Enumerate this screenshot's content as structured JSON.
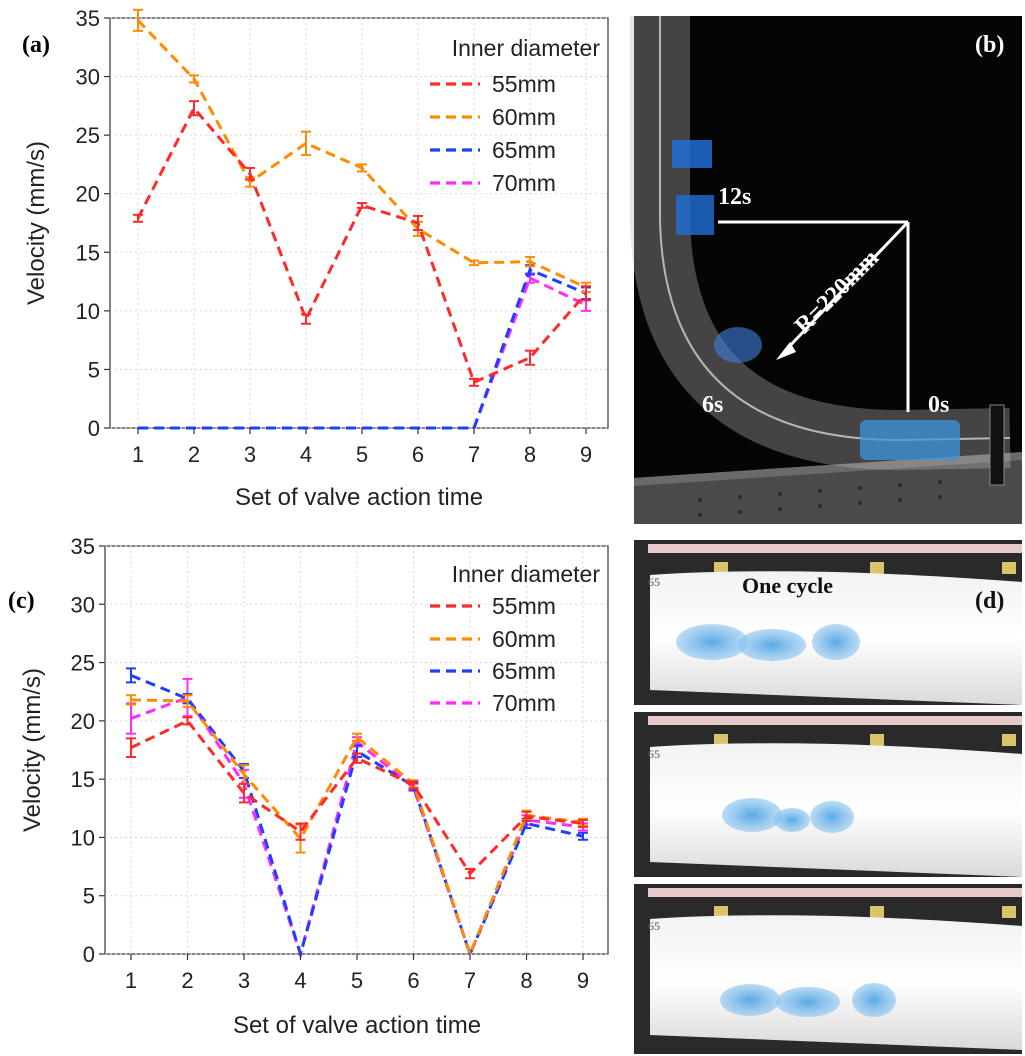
{
  "panels": {
    "a": "(a)",
    "b": "(b)",
    "c": "(c)",
    "d": "(d)"
  },
  "photo_b": {
    "labels": [
      "12s",
      "6s",
      "0s"
    ],
    "radius_label": "R=220mm"
  },
  "photo_d": {
    "caption": "One cycle",
    "strip_mark": "65"
  },
  "chart_data": [
    {
      "id": "a",
      "type": "line",
      "xlabel": "Set of valve action time",
      "ylabel": "Velocity (mm/s)",
      "x": [
        1,
        2,
        3,
        4,
        5,
        6,
        7,
        8,
        9
      ],
      "ylim": [
        0,
        35
      ],
      "yticks": [
        0,
        5,
        10,
        15,
        20,
        25,
        30,
        35
      ],
      "grid": true,
      "legend_title": "Inner diameter",
      "legend_position": "top-right",
      "series": [
        {
          "name": "55mm",
          "color": "#ff2a2a",
          "values": [
            17.9,
            27.3,
            21.7,
            9.3,
            19.0,
            17.5,
            3.9,
            6.0,
            11.5
          ],
          "errors": [
            0.3,
            0.6,
            0.5,
            0.4,
            0.2,
            0.6,
            0.3,
            0.6,
            0.6
          ]
        },
        {
          "name": "60mm",
          "color": "#ff8c00",
          "values": [
            34.8,
            29.8,
            21.0,
            24.3,
            22.2,
            17.0,
            14.1,
            14.2,
            12.0
          ],
          "errors": [
            0.9,
            0.3,
            0.4,
            1.0,
            0.3,
            0.6,
            0.2,
            0.4,
            0.4
          ]
        },
        {
          "name": "65mm",
          "color": "#1f3fff",
          "values": [
            0,
            0,
            0,
            0,
            0,
            0,
            0,
            13.5,
            11.5
          ],
          "errors": [
            0,
            0,
            0,
            0,
            0,
            0,
            0,
            0.4,
            0.5
          ]
        },
        {
          "name": "70mm",
          "color": "#ff2bff",
          "values": [
            0,
            0,
            0,
            0,
            0,
            0,
            0,
            12.8,
            10.5
          ],
          "errors": [
            0,
            0,
            0,
            0,
            0,
            0,
            0,
            0.4,
            0.5
          ]
        }
      ]
    },
    {
      "id": "c",
      "type": "line",
      "xlabel": "Set of valve action time",
      "ylabel": "Velocity (mm/s)",
      "x": [
        1,
        2,
        3,
        4,
        5,
        6,
        7,
        8,
        9
      ],
      "ylim": [
        0,
        35
      ],
      "yticks": [
        0,
        5,
        10,
        15,
        20,
        25,
        30,
        35
      ],
      "grid": true,
      "legend_title": "Inner diameter",
      "legend_position": "top-right",
      "series": [
        {
          "name": "55mm",
          "color": "#ff2a2a",
          "values": [
            17.7,
            20.0,
            13.8,
            10.5,
            16.8,
            14.5,
            6.9,
            11.8,
            11.2
          ],
          "errors": [
            0.8,
            0.3,
            0.8,
            0.7,
            0.4,
            0.3,
            0.4,
            0.4,
            0.3
          ]
        },
        {
          "name": "60mm",
          "color": "#ff8c00",
          "values": [
            21.8,
            21.7,
            15.4,
            9.9,
            18.6,
            14.6,
            0.0,
            11.9,
            11.3
          ],
          "errors": [
            0.4,
            0.5,
            0.8,
            1.2,
            0.3,
            0.3,
            0.0,
            0.4,
            0.3
          ]
        },
        {
          "name": "65mm",
          "color": "#1f3fff",
          "values": [
            23.9,
            21.9,
            15.7,
            0.0,
            17.4,
            14.4,
            0.0,
            11.2,
            10.1
          ],
          "errors": [
            0.6,
            0.4,
            0.6,
            0.0,
            0.5,
            0.3,
            0.0,
            0.4,
            0.3
          ]
        },
        {
          "name": "70mm",
          "color": "#ff2bff",
          "values": [
            20.2,
            22.0,
            14.6,
            0.0,
            18.2,
            14.3,
            0.0,
            11.5,
            10.9
          ],
          "errors": [
            1.3,
            1.6,
            1.2,
            0.0,
            0.4,
            0.3,
            0.0,
            0.4,
            0.3
          ]
        }
      ]
    }
  ]
}
